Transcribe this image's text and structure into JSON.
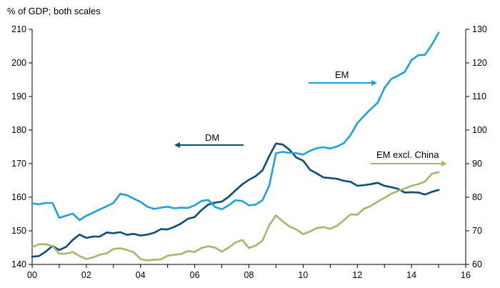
{
  "chart_data": {
    "type": "line",
    "subtitle": "% of GDP; both scales",
    "x_tick_labels": [
      "00",
      "02",
      "04",
      "06",
      "08",
      "10",
      "12",
      "14",
      "16"
    ],
    "x_range": [
      2000,
      2016
    ],
    "y_left": {
      "range": [
        140,
        210
      ],
      "ticks": [
        "140",
        "150",
        "160",
        "170",
        "180",
        "190",
        "200",
        "210"
      ]
    },
    "y_right": {
      "range": [
        60,
        130
      ],
      "ticks": [
        "60",
        "70",
        "80",
        "90",
        "100",
        "110",
        "120",
        "130"
      ]
    },
    "grid": false,
    "series": [
      {
        "name": "DM",
        "axis": "left",
        "color": "#0e4d74",
        "x": [
          2000.0,
          2000.25,
          2000.5,
          2000.75,
          2001.0,
          2001.25,
          2001.5,
          2001.75,
          2002.0,
          2002.25,
          2002.5,
          2002.75,
          2003.0,
          2003.25,
          2003.5,
          2003.75,
          2004.0,
          2004.25,
          2004.5,
          2004.75,
          2005.0,
          2005.25,
          2005.5,
          2005.75,
          2006.0,
          2006.25,
          2006.5,
          2006.75,
          2007.0,
          2007.25,
          2007.5,
          2007.75,
          2008.0,
          2008.25,
          2008.5,
          2008.75,
          2009.0,
          2009.25,
          2009.5,
          2009.75,
          2010.0,
          2010.25,
          2010.5,
          2010.75,
          2011.0,
          2011.25,
          2011.5,
          2011.75,
          2012.0,
          2012.25,
          2012.5,
          2012.75,
          2013.0,
          2013.25,
          2013.5,
          2013.75,
          2014.0,
          2014.25,
          2014.5,
          2014.75,
          2015.0
        ],
        "y": [
          142.3,
          142.5,
          143.8,
          145.5,
          144.3,
          145.2,
          147.3,
          148.9,
          147.9,
          148.3,
          148.3,
          149.5,
          149.3,
          149.6,
          148.8,
          149.1,
          148.6,
          148.9,
          149.4,
          150.5,
          150.4,
          151.2,
          152.2,
          153.6,
          154.1,
          156.2,
          157.8,
          158.4,
          158.7,
          160.1,
          162.0,
          163.8,
          165.2,
          166.3,
          168.0,
          172.3,
          176.0,
          175.7,
          174.1,
          171.8,
          170.9,
          168.2,
          167.1,
          165.9,
          165.7,
          165.5,
          164.9,
          164.6,
          163.4,
          163.6,
          163.9,
          164.3,
          163.4,
          163.0,
          162.5,
          161.4,
          161.5,
          161.4,
          160.8,
          161.6,
          162.2
        ]
      },
      {
        "name": "EM",
        "axis": "right",
        "color": "#1ba3dc",
        "x": [
          2000.0,
          2000.25,
          2000.5,
          2000.75,
          2001.0,
          2001.25,
          2001.5,
          2001.75,
          2002.0,
          2002.25,
          2002.5,
          2002.75,
          2003.0,
          2003.25,
          2003.5,
          2003.75,
          2004.0,
          2004.25,
          2004.5,
          2004.75,
          2005.0,
          2005.25,
          2005.5,
          2005.75,
          2006.0,
          2006.25,
          2006.5,
          2006.75,
          2007.0,
          2007.25,
          2007.5,
          2007.75,
          2008.0,
          2008.25,
          2008.5,
          2008.75,
          2009.0,
          2009.25,
          2009.5,
          2009.75,
          2010.0,
          2010.25,
          2010.5,
          2010.75,
          2011.0,
          2011.25,
          2011.5,
          2011.75,
          2012.0,
          2012.25,
          2012.5,
          2012.75,
          2013.0,
          2013.25,
          2013.5,
          2013.75,
          2014.0,
          2014.25,
          2014.5,
          2014.75,
          2015.0
        ],
        "y": [
          78.2,
          77.9,
          78.3,
          78.3,
          73.9,
          74.5,
          75.1,
          73.2,
          74.5,
          75.4,
          76.4,
          77.3,
          78.3,
          81.0,
          80.6,
          79.6,
          78.6,
          77.2,
          76.5,
          76.9,
          77.2,
          76.7,
          76.9,
          76.8,
          77.6,
          78.9,
          79.2,
          77.1,
          76.4,
          77.6,
          79.1,
          78.9,
          77.6,
          77.8,
          79.1,
          83.5,
          93.1,
          93.5,
          93.2,
          93.1,
          92.7,
          93.8,
          94.6,
          94.9,
          94.5,
          95.1,
          96.1,
          98.5,
          102.1,
          104.2,
          106.3,
          108.1,
          112.5,
          115.2,
          116.2,
          117.3,
          120.8,
          122.3,
          122.4,
          125.4,
          129.0
        ]
      },
      {
        "name": "EM excl. China",
        "axis": "right",
        "color": "#a8b56b",
        "x": [
          2000.0,
          2000.25,
          2000.5,
          2000.75,
          2001.0,
          2001.25,
          2001.5,
          2001.75,
          2002.0,
          2002.25,
          2002.5,
          2002.75,
          2003.0,
          2003.25,
          2003.5,
          2003.75,
          2004.0,
          2004.25,
          2004.5,
          2004.75,
          2005.0,
          2005.25,
          2005.5,
          2005.75,
          2006.0,
          2006.25,
          2006.5,
          2006.75,
          2007.0,
          2007.25,
          2007.5,
          2007.75,
          2008.0,
          2008.25,
          2008.5,
          2008.75,
          2009.0,
          2009.25,
          2009.5,
          2009.75,
          2010.0,
          2010.25,
          2010.5,
          2010.75,
          2011.0,
          2011.25,
          2011.5,
          2011.75,
          2012.0,
          2012.25,
          2012.5,
          2012.75,
          2013.0,
          2013.25,
          2013.5,
          2013.75,
          2014.0,
          2014.25,
          2014.5,
          2014.75,
          2015.0
        ],
        "y": [
          65.2,
          66.0,
          66.0,
          65.5,
          63.2,
          63.2,
          63.7,
          62.5,
          61.6,
          62.1,
          62.9,
          63.3,
          64.6,
          64.8,
          64.3,
          63.6,
          61.6,
          61.2,
          61.4,
          61.5,
          62.6,
          62.9,
          63.1,
          64.0,
          63.7,
          64.9,
          65.4,
          65.0,
          63.8,
          65.0,
          66.5,
          67.3,
          64.9,
          65.6,
          67.1,
          71.7,
          74.6,
          72.8,
          71.3,
          70.4,
          69.0,
          69.8,
          70.8,
          71.1,
          70.6,
          71.5,
          73.1,
          74.9,
          74.8,
          76.6,
          77.4,
          78.7,
          79.8,
          81.0,
          81.9,
          82.6,
          83.4,
          83.9,
          84.7,
          87.0,
          87.5
        ]
      }
    ],
    "annotations": [
      {
        "text": "DM",
        "arrow": "left",
        "color": "#0e4d74"
      },
      {
        "text": "EM",
        "arrow": "right",
        "color": "#1ba3dc"
      },
      {
        "text": "EM excl. China",
        "arrow": "right",
        "color": "#a8b56b"
      }
    ]
  }
}
